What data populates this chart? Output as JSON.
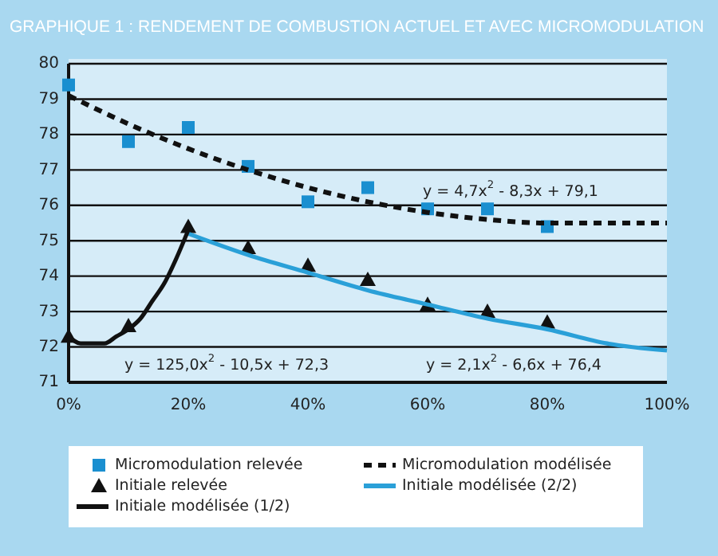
{
  "chart_data": {
    "type": "line",
    "title": "GRAPHIQUE 1 : RENDEMENT DE COMBUSTION ACTUEL ET AVEC MICROMODULATION",
    "xlim": [
      0,
      100
    ],
    "xticks": [
      {
        "value": 0,
        "label": "0%"
      },
      {
        "value": 20,
        "label": "20%"
      },
      {
        "value": 40,
        "label": "40%"
      },
      {
        "value": 60,
        "label": "60%"
      },
      {
        "value": 80,
        "label": "80%"
      },
      {
        "value": 100,
        "label": "100%"
      }
    ],
    "ylim": [
      71,
      80
    ],
    "yticks": [
      71,
      72,
      73,
      74,
      75,
      76,
      77,
      78,
      79,
      80
    ],
    "grid": "y",
    "legend": "bottom",
    "series": [
      {
        "name": "Micromodulation relevée",
        "type": "scatter",
        "marker": "square",
        "color": "#1a8fd0",
        "x": [
          0,
          10,
          20,
          30,
          40,
          50,
          60,
          70,
          80
        ],
        "values": [
          79.4,
          77.8,
          78.2,
          77.1,
          76.1,
          76.5,
          75.9,
          75.9,
          75.4
        ]
      },
      {
        "name": "Micromodulation modélisée",
        "type": "line",
        "line_style": "dashed",
        "color": "#111111",
        "x": [
          0,
          10,
          20,
          30,
          40,
          50,
          60,
          70,
          80,
          90,
          100
        ],
        "values": [
          79.1,
          78.3,
          77.6,
          77.0,
          76.5,
          76.1,
          75.8,
          75.6,
          75.5,
          75.5,
          75.5
        ]
      },
      {
        "name": "Initiale relevée",
        "type": "scatter",
        "marker": "triangle",
        "color": "#111111",
        "x": [
          0,
          10,
          20,
          30,
          40,
          50,
          60,
          70,
          80
        ],
        "values": [
          72.3,
          72.6,
          75.4,
          74.8,
          74.3,
          73.9,
          73.2,
          73.0,
          72.7
        ]
      },
      {
        "name": "Initiale modélisée (2/2)",
        "type": "line",
        "line_style": "solid",
        "color": "#2aa0d8",
        "x": [
          20,
          30,
          40,
          50,
          60,
          70,
          80,
          90,
          100
        ],
        "values": [
          75.2,
          74.6,
          74.1,
          73.6,
          73.2,
          72.8,
          72.5,
          72.1,
          71.9
        ]
      },
      {
        "name": "Initiale modélisée (1/2)",
        "type": "line",
        "line_style": "solid",
        "color": "#111111",
        "x": [
          0,
          2,
          4,
          6,
          8,
          10,
          12,
          14,
          16,
          18,
          20
        ],
        "values": [
          72.3,
          72.1,
          72.1,
          72.1,
          72.3,
          72.5,
          72.8,
          73.3,
          73.8,
          74.5,
          75.3
        ]
      }
    ],
    "annotations": [
      "y = 4,7x$^{2}$ - 8,3x + 79,1",
      "y = 125,0x$^{2}$ - 10,5x + 72,3",
      "y = 2,1x$^{2}$ - 6,6x + 76,4"
    ]
  }
}
